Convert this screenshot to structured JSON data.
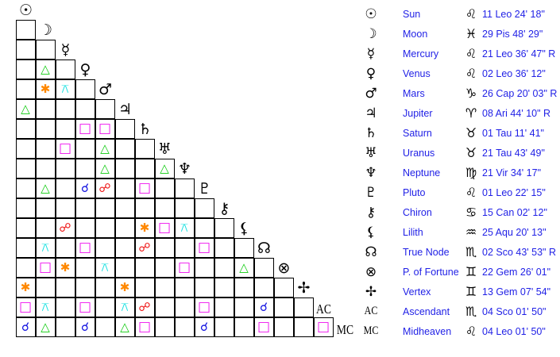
{
  "chart_data": {
    "type": "table",
    "planets": [
      {
        "name": "Sun",
        "glyph": "☉",
        "icon": "sun-icon",
        "sign_glyph": "♌",
        "position": "11 Leo 24' 18\""
      },
      {
        "name": "Moon",
        "glyph": "☽",
        "icon": "moon-icon",
        "sign_glyph": "♓",
        "position": "29 Pis 48' 29\""
      },
      {
        "name": "Mercury",
        "glyph": "☿",
        "icon": "mercury-icon",
        "sign_glyph": "♌",
        "position": "21 Leo 36' 47\" R"
      },
      {
        "name": "Venus",
        "glyph": "♀",
        "icon": "venus-icon",
        "sign_glyph": "♌",
        "position": "02 Leo 36' 12\""
      },
      {
        "name": "Mars",
        "glyph": "♂",
        "icon": "mars-icon",
        "sign_glyph": "♑",
        "position": "26 Cap 20' 03\" R"
      },
      {
        "name": "Jupiter",
        "glyph": "♃",
        "icon": "jupiter-icon",
        "sign_glyph": "♈",
        "position": "08 Ari 44' 10\" R"
      },
      {
        "name": "Saturn",
        "glyph": "♄",
        "icon": "saturn-icon",
        "sign_glyph": "♉",
        "position": "01 Tau 11' 41\""
      },
      {
        "name": "Uranus",
        "glyph": "♅",
        "icon": "uranus-icon",
        "sign_glyph": "♉",
        "position": "21 Tau 43' 49\""
      },
      {
        "name": "Neptune",
        "glyph": "♆",
        "icon": "neptune-icon",
        "sign_glyph": "♍",
        "position": "21 Vir 34' 17\""
      },
      {
        "name": "Pluto",
        "glyph": "♇",
        "icon": "pluto-icon",
        "sign_glyph": "♌",
        "position": "01 Leo 22' 15\""
      },
      {
        "name": "Chiron",
        "glyph": "⚷",
        "icon": "chiron-icon",
        "sign_glyph": "♋",
        "position": "15 Can 02' 12\""
      },
      {
        "name": "Lilith",
        "glyph": "⚸",
        "icon": "lilith-icon",
        "sign_glyph": "♒",
        "position": "25 Aqu 20' 13\""
      },
      {
        "name": "True Node",
        "glyph": "☊",
        "icon": "node-icon",
        "sign_glyph": "♏",
        "position": "02 Sco 43' 53\" R"
      },
      {
        "name": "P. of Fortune",
        "glyph": "⊗",
        "icon": "fortune-icon",
        "sign_glyph": "♊",
        "position": "22 Gem 26' 01\""
      },
      {
        "name": "Vertex",
        "glyph": "✢",
        "icon": "vertex-icon",
        "sign_glyph": "♊",
        "position": "13 Gem 07' 54\""
      },
      {
        "name": "Ascendant",
        "glyph": "AC",
        "icon": "ascendant-icon",
        "sign_glyph": "♏",
        "position": "04 Sco 01' 50\""
      },
      {
        "name": "Midheaven",
        "glyph": "MC",
        "icon": "midheaven-icon",
        "sign_glyph": "♌",
        "position": "04 Leo 01' 50\""
      }
    ],
    "aspect_types": {
      "conjunction": {
        "glyph": "☌",
        "color": "#1010e0"
      },
      "opposition": {
        "glyph": "☍",
        "color": "#ee1010"
      },
      "trine": {
        "glyph": "△",
        "color": "#10cc10"
      },
      "square": {
        "glyph": "□",
        "color": "#ee10ee"
      },
      "sextile": {
        "glyph": "✱",
        "color": "#ff8800"
      },
      "quincunx": {
        "glyph": "⚻",
        "color": "#10e0e0"
      }
    },
    "aspects": [
      [
        "Venus",
        "Moon",
        "trine"
      ],
      [
        "Mars",
        "Moon",
        "sextile"
      ],
      [
        "Mars",
        "Mercury",
        "quincunx"
      ],
      [
        "Jupiter",
        "Sun",
        "trine"
      ],
      [
        "Saturn",
        "Venus",
        "square"
      ],
      [
        "Saturn",
        "Mars",
        "square"
      ],
      [
        "Uranus",
        "Mercury",
        "square"
      ],
      [
        "Uranus",
        "Mars",
        "trine"
      ],
      [
        "Neptune",
        "Mars",
        "trine"
      ],
      [
        "Neptune",
        "Uranus",
        "trine"
      ],
      [
        "Pluto",
        "Moon",
        "trine"
      ],
      [
        "Pluto",
        "Venus",
        "conjunction"
      ],
      [
        "Pluto",
        "Mars",
        "opposition"
      ],
      [
        "Pluto",
        "Saturn",
        "square"
      ],
      [
        "Lilith",
        "Mercury",
        "opposition"
      ],
      [
        "Lilith",
        "Saturn",
        "sextile"
      ],
      [
        "Lilith",
        "Uranus",
        "square"
      ],
      [
        "Lilith",
        "Neptune",
        "quincunx"
      ],
      [
        "True Node",
        "Moon",
        "quincunx"
      ],
      [
        "True Node",
        "Venus",
        "square"
      ],
      [
        "True Node",
        "Saturn",
        "opposition"
      ],
      [
        "True Node",
        "Pluto",
        "square"
      ],
      [
        "P. of Fortune",
        "Moon",
        "square"
      ],
      [
        "P. of Fortune",
        "Mercury",
        "sextile"
      ],
      [
        "P. of Fortune",
        "Mars",
        "quincunx"
      ],
      [
        "P. of Fortune",
        "Neptune",
        "square"
      ],
      [
        "P. of Fortune",
        "Lilith",
        "trine"
      ],
      [
        "Vertex",
        "Sun",
        "sextile"
      ],
      [
        "Vertex",
        "Jupiter",
        "sextile"
      ],
      [
        "Ascendant",
        "Sun",
        "square"
      ],
      [
        "Ascendant",
        "Moon",
        "quincunx"
      ],
      [
        "Ascendant",
        "Venus",
        "square"
      ],
      [
        "Ascendant",
        "Jupiter",
        "quincunx"
      ],
      [
        "Ascendant",
        "Saturn",
        "opposition"
      ],
      [
        "Ascendant",
        "Pluto",
        "square"
      ],
      [
        "Ascendant",
        "True Node",
        "conjunction"
      ],
      [
        "Midheaven",
        "Sun",
        "conjunction"
      ],
      [
        "Midheaven",
        "Moon",
        "trine"
      ],
      [
        "Midheaven",
        "Venus",
        "conjunction"
      ],
      [
        "Midheaven",
        "Jupiter",
        "trine"
      ],
      [
        "Midheaven",
        "Saturn",
        "square"
      ],
      [
        "Midheaven",
        "Pluto",
        "conjunction"
      ],
      [
        "Midheaven",
        "True Node",
        "square"
      ],
      [
        "Midheaven",
        "Ascendant",
        "square"
      ]
    ]
  }
}
